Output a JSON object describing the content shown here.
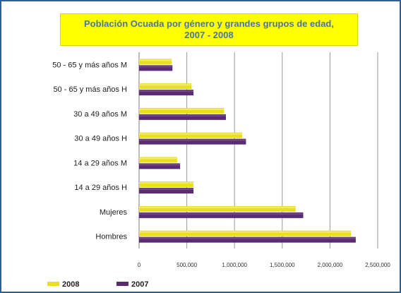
{
  "chart_data": {
    "type": "bar",
    "orientation": "horizontal",
    "title_lines": [
      "Población Ocuada por género y grandes grupos de edad,",
      "2007 - 2008"
    ],
    "categories": [
      "Hombres",
      "Mujeres",
      "14 a 29 años H",
      "14 a 29 años M",
      "30 a 49 años H",
      "30 a 49 años M",
      "50  - 65 y más años H",
      "50 - 65 y más años M"
    ],
    "series": [
      {
        "name": "2008",
        "color": "#eadf1d",
        "values": [
          2220000,
          1640000,
          570000,
          400000,
          1080000,
          890000,
          550000,
          340000
        ]
      },
      {
        "name": "2007",
        "color": "#5a2a72",
        "values": [
          2270000,
          1720000,
          570000,
          430000,
          1120000,
          910000,
          570000,
          350000
        ]
      }
    ],
    "x_ticks": [
      "0",
      "500,000",
      "1,000,000",
      "1,500,000",
      "2,000,000",
      "2,500,000"
    ],
    "xlim": [
      0,
      2500000
    ],
    "grid": "vertical",
    "legend_position": "bottom-left"
  }
}
